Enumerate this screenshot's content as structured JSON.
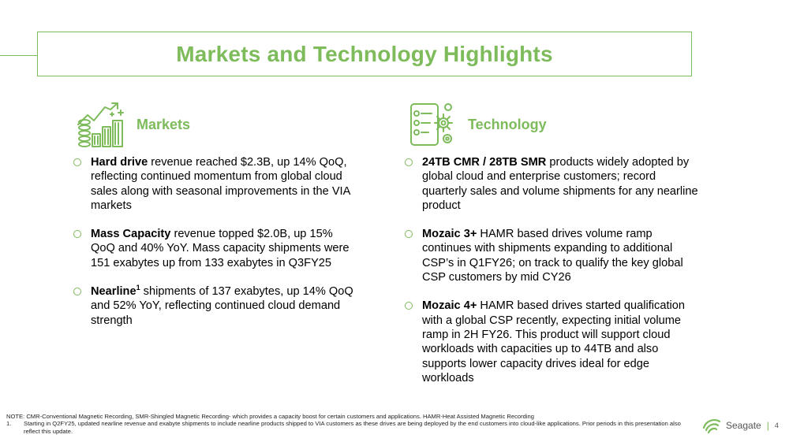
{
  "title": "Markets and Technology Highlights",
  "markets": {
    "heading": "Markets",
    "items": [
      {
        "bold": "Hard drive",
        "sup": "",
        "text": " revenue reached $2.3B, up 14% QoQ, reflecting continued momentum from global cloud sales along with seasonal improvements in the VIA markets"
      },
      {
        "bold": "Mass Capacity",
        "sup": "",
        "text": " revenue topped $2.0B, up 15% QoQ and 40% YoY. Mass capacity shipments were 151 exabytes up from 133 exabytes in Q3FY25"
      },
      {
        "bold": "Nearline",
        "sup": "1",
        "text": " shipments of 137 exabytes, up 14% QoQ and 52% YoY, reflecting continued cloud demand strength"
      }
    ]
  },
  "technology": {
    "heading": "Technology",
    "items": [
      {
        "bold": "24TB CMR / 28TB SMR",
        "sup": "",
        "text": " products widely adopted by global cloud and enterprise customers; record quarterly sales and volume shipments for any nearline product"
      },
      {
        "bold": "Mozaic 3+",
        "sup": "",
        "text": " HAMR based drives volume ramp continues with shipments expanding to additional CSP’s in Q1FY26; on track to qualify the key global CSP customers by mid CY26"
      },
      {
        "bold": "Mozaic 4+",
        "sup": "",
        "text": " HAMR based drives started qualification with a global CSP recently, expecting initial volume ramp in 2H FY26. This product will support cloud workloads with capacities up to 44TB and also supports lower capacity drives ideal for edge workloads"
      }
    ]
  },
  "notes": {
    "note": "NOTE: CMR-Conventional Magnetic Recording, SMR-Shingled Magnetic Recording- which provides a capacity boost for certain customers and applications. HAMR-Heat Assisted Magnetic Recording",
    "footnote_num": "1.",
    "footnote": "Starting in Q2FY25, updated nearline revenue and exabyte shipments to include nearline products shipped to VIA customers as these drives are being deployed by the end customers into cloud-like applications. Prior periods in this presentation also reflect this update."
  },
  "footer": {
    "brand": "Seagate",
    "separator": "|",
    "page": "4"
  },
  "colors": {
    "accent": "#7dbb5b"
  },
  "icons": {
    "markets": "growth-chart-coins-icon",
    "technology": "checklist-gears-icon",
    "logo": "seagate-logo-icon"
  }
}
